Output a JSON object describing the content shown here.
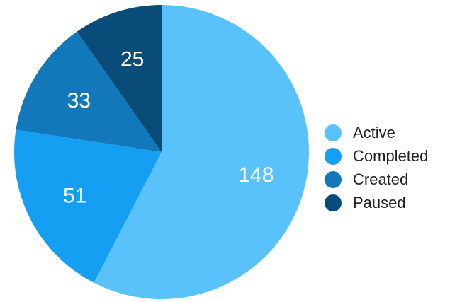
{
  "chart_data": {
    "type": "pie",
    "title": "",
    "categories": [
      "Active",
      "Completed",
      "Created",
      "Paused"
    ],
    "values": [
      148,
      51,
      33,
      25
    ],
    "colors": [
      "#5ac2fb",
      "#159ff3",
      "#1278ba",
      "#0a4c79"
    ],
    "legend_position": "right",
    "start": "top",
    "direction": "clockwise",
    "slice_labels": [
      "148",
      "51",
      "33",
      "25"
    ],
    "legend": [
      {
        "label": "Active",
        "color": "#5ac2fb"
      },
      {
        "label": "Completed",
        "color": "#159ff3"
      },
      {
        "label": "Created",
        "color": "#1278ba"
      },
      {
        "label": "Paused",
        "color": "#0a4c79"
      }
    ]
  }
}
